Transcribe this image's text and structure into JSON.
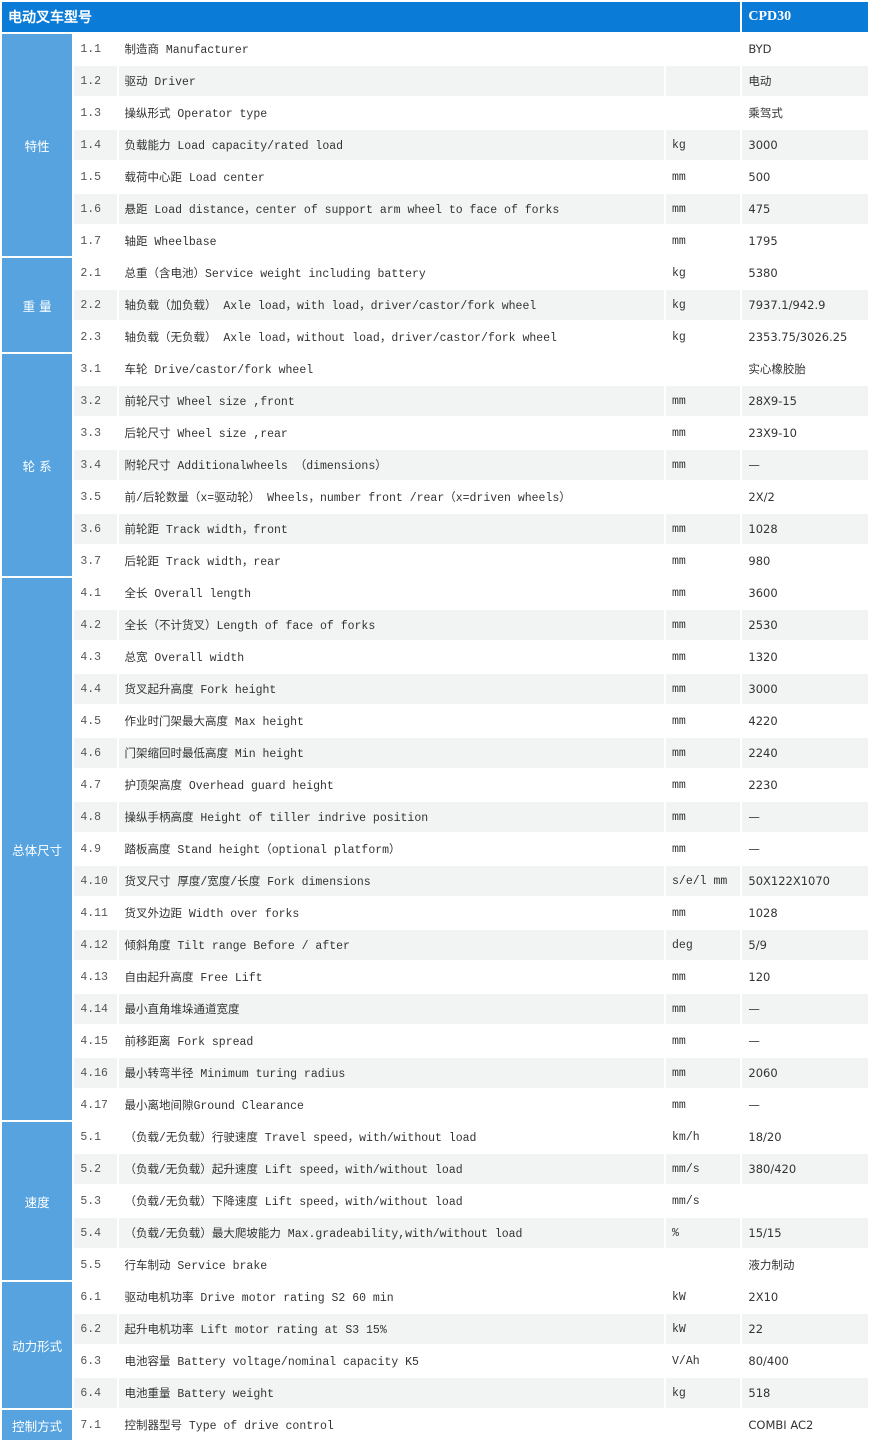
{
  "header": {
    "title": "电动叉车型号",
    "model": "CPD30"
  },
  "colors": {
    "header_bg": "#0a7bd6",
    "group_bg": "#56a3e0",
    "alt_row_bg": "#f2f3f3"
  },
  "groups": [
    {
      "label": "特性",
      "rows": [
        {
          "num": "1.1",
          "desc": "制造商 Manufacturer",
          "unit": "",
          "value": "BYD"
        },
        {
          "num": "1.2",
          "desc": "驱动 Driver",
          "unit": "",
          "value": "电动"
        },
        {
          "num": "1.3",
          "desc": "操纵形式 Operator type",
          "unit": "",
          "value": "乘驾式"
        },
        {
          "num": "1.4",
          "desc": "负载能力 Load capacity/rated load",
          "unit": "kg",
          "value": "3000"
        },
        {
          "num": "1.5",
          "desc": "载荷中心距 Load center",
          "unit": "mm",
          "value": "500"
        },
        {
          "num": "1.6",
          "desc": "悬距 Load distance，center of support arm wheel to face of forks",
          "unit": "mm",
          "value": "475"
        },
        {
          "num": "1.7",
          "desc": "轴距 Wheelbase",
          "unit": "mm",
          "value": "1795"
        }
      ]
    },
    {
      "label": "重 量",
      "rows": [
        {
          "num": "2.1",
          "desc": "总重（含电池）Service weight including battery",
          "unit": "kg",
          "value": "5380"
        },
        {
          "num": "2.2",
          "desc": "轴负载（加负载） Axle load，with load，driver/castor/fork wheel",
          "unit": "kg",
          "value": "7937.1/942.9"
        },
        {
          "num": "2.3",
          "desc": "轴负载（无负载） Axle load，without load，driver/castor/fork wheel",
          "unit": "kg",
          "value": "2353.75/3026.25"
        }
      ]
    },
    {
      "label": "轮 系",
      "rows": [
        {
          "num": "3.1",
          "desc": "车轮 Drive/castor/fork wheel",
          "unit": "",
          "value": "实心橡胶胎"
        },
        {
          "num": "3.2",
          "desc": "前轮尺寸 Wheel size ,front",
          "unit": "mm",
          "value": "28X9-15"
        },
        {
          "num": "3.3",
          "desc": "后轮尺寸 Wheel size ,rear",
          "unit": "mm",
          "value": "23X9-10"
        },
        {
          "num": "3.4",
          "desc": "附轮尺寸 Additionalwheels （dimensions）",
          "unit": "mm",
          "value": "—"
        },
        {
          "num": "3.5",
          "desc": "前/后轮数量（x=驱动轮） Wheels，number front /rear（x=driven wheels）",
          "unit": "",
          "value": "2X/2"
        },
        {
          "num": "3.6",
          "desc": "前轮距 Track width，front",
          "unit": "mm",
          "value": "1028"
        },
        {
          "num": "3.7",
          "desc": "后轮距 Track width，rear",
          "unit": "mm",
          "value": "980"
        }
      ]
    },
    {
      "label": "总体尺寸",
      "rows": [
        {
          "num": "4.1",
          "desc": "全长 Overall length",
          "unit": "mm",
          "value": "3600"
        },
        {
          "num": "4.2",
          "desc": "全长（不计货叉）Length of face of forks",
          "unit": "mm",
          "value": "2530"
        },
        {
          "num": "4.3",
          "desc": "总宽 Overall width",
          "unit": "mm",
          "value": "1320"
        },
        {
          "num": "4.4",
          "desc": "货叉起升高度 Fork height",
          "unit": "mm",
          "value": "3000"
        },
        {
          "num": "4.5",
          "desc": "作业时门架最大高度 Max height",
          "unit": "mm",
          "value": "4220"
        },
        {
          "num": "4.6",
          "desc": "门架缩回时最低高度 Min height",
          "unit": "mm",
          "value": "2240"
        },
        {
          "num": "4.7",
          "desc": "护顶架高度 Overhead guard height",
          "unit": "mm",
          "value": "2230"
        },
        {
          "num": "4.8",
          "desc": "操纵手柄高度 Height of tiller indrive position",
          "unit": "mm",
          "value": "—"
        },
        {
          "num": "4.9",
          "desc": "踏板高度 Stand height（optional platform）",
          "unit": "mm",
          "value": "—"
        },
        {
          "num": "4.10",
          "desc": "货叉尺寸 厚度/宽度/长度 Fork dimensions",
          "unit": "s/e/l mm",
          "value": "50X122X1070"
        },
        {
          "num": "4.11",
          "desc": "货叉外边距 Width over forks",
          "unit": "mm",
          "value": "1028"
        },
        {
          "num": "4.12",
          "desc": "倾斜角度 Tilt range Before / after",
          "unit": "deg",
          "value": "5/9"
        },
        {
          "num": "4.13",
          "desc": "自由起升高度 Free Lift",
          "unit": "mm",
          "value": "120"
        },
        {
          "num": "4.14",
          "desc": "最小直角堆垛通道宽度",
          "unit": "mm",
          "value": "—"
        },
        {
          "num": "4.15",
          "desc": "前移距离 Fork spread",
          "unit": "mm",
          "value": "—"
        },
        {
          "num": "4.16",
          "desc": "最小转弯半径 Minimum turing radius",
          "unit": "mm",
          "value": "2060"
        },
        {
          "num": "4.17",
          "desc": "最小离地间隙Ground Clearance",
          "unit": "mm",
          "value": "—"
        }
      ]
    },
    {
      "label": "速度",
      "rows": [
        {
          "num": "5.1",
          "desc": "（负载/无负载）行驶速度 Travel speed，with/without load",
          "unit": "km/h",
          "value": "18/20"
        },
        {
          "num": "5.2",
          "desc": "（负载/无负载）起升速度 Lift speed，with/without load",
          "unit": "mm/s",
          "value": "380/420"
        },
        {
          "num": "5.3",
          "desc": "（负载/无负载）下降速度 Lift speed，with/without load",
          "unit": "mm/s",
          "value": ""
        },
        {
          "num": "5.4",
          "desc": "（负载/无负载）最大爬坡能力 Max.gradeability,with/without load",
          "unit": "%",
          "value": "15/15"
        },
        {
          "num": "5.5",
          "desc": "行车制动 Service brake",
          "unit": "",
          "value": "液力制动"
        }
      ]
    },
    {
      "label": "动力形式",
      "rows": [
        {
          "num": "6.1",
          "desc": "驱动电机功率 Drive motor rating S2 60 min",
          "unit": "kW",
          "value": "2X10"
        },
        {
          "num": "6.2",
          "desc": "起升电机功率 Lift motor rating at S3 15%",
          "unit": "kW",
          "value": "22"
        },
        {
          "num": "6.3",
          "desc": "电池容量 Battery voltage/nominal capacity K5",
          "unit": "V/Ah",
          "value": "80/400"
        },
        {
          "num": "6.4",
          "desc": "电池重量 Battery weight",
          "unit": "kg",
          "value": "518"
        }
      ]
    },
    {
      "label": "控制方式",
      "rows": [
        {
          "num": "7.1",
          "desc": "控制器型号 Type of drive control",
          "unit": "",
          "value": "COMBI AC2"
        }
      ]
    }
  ]
}
